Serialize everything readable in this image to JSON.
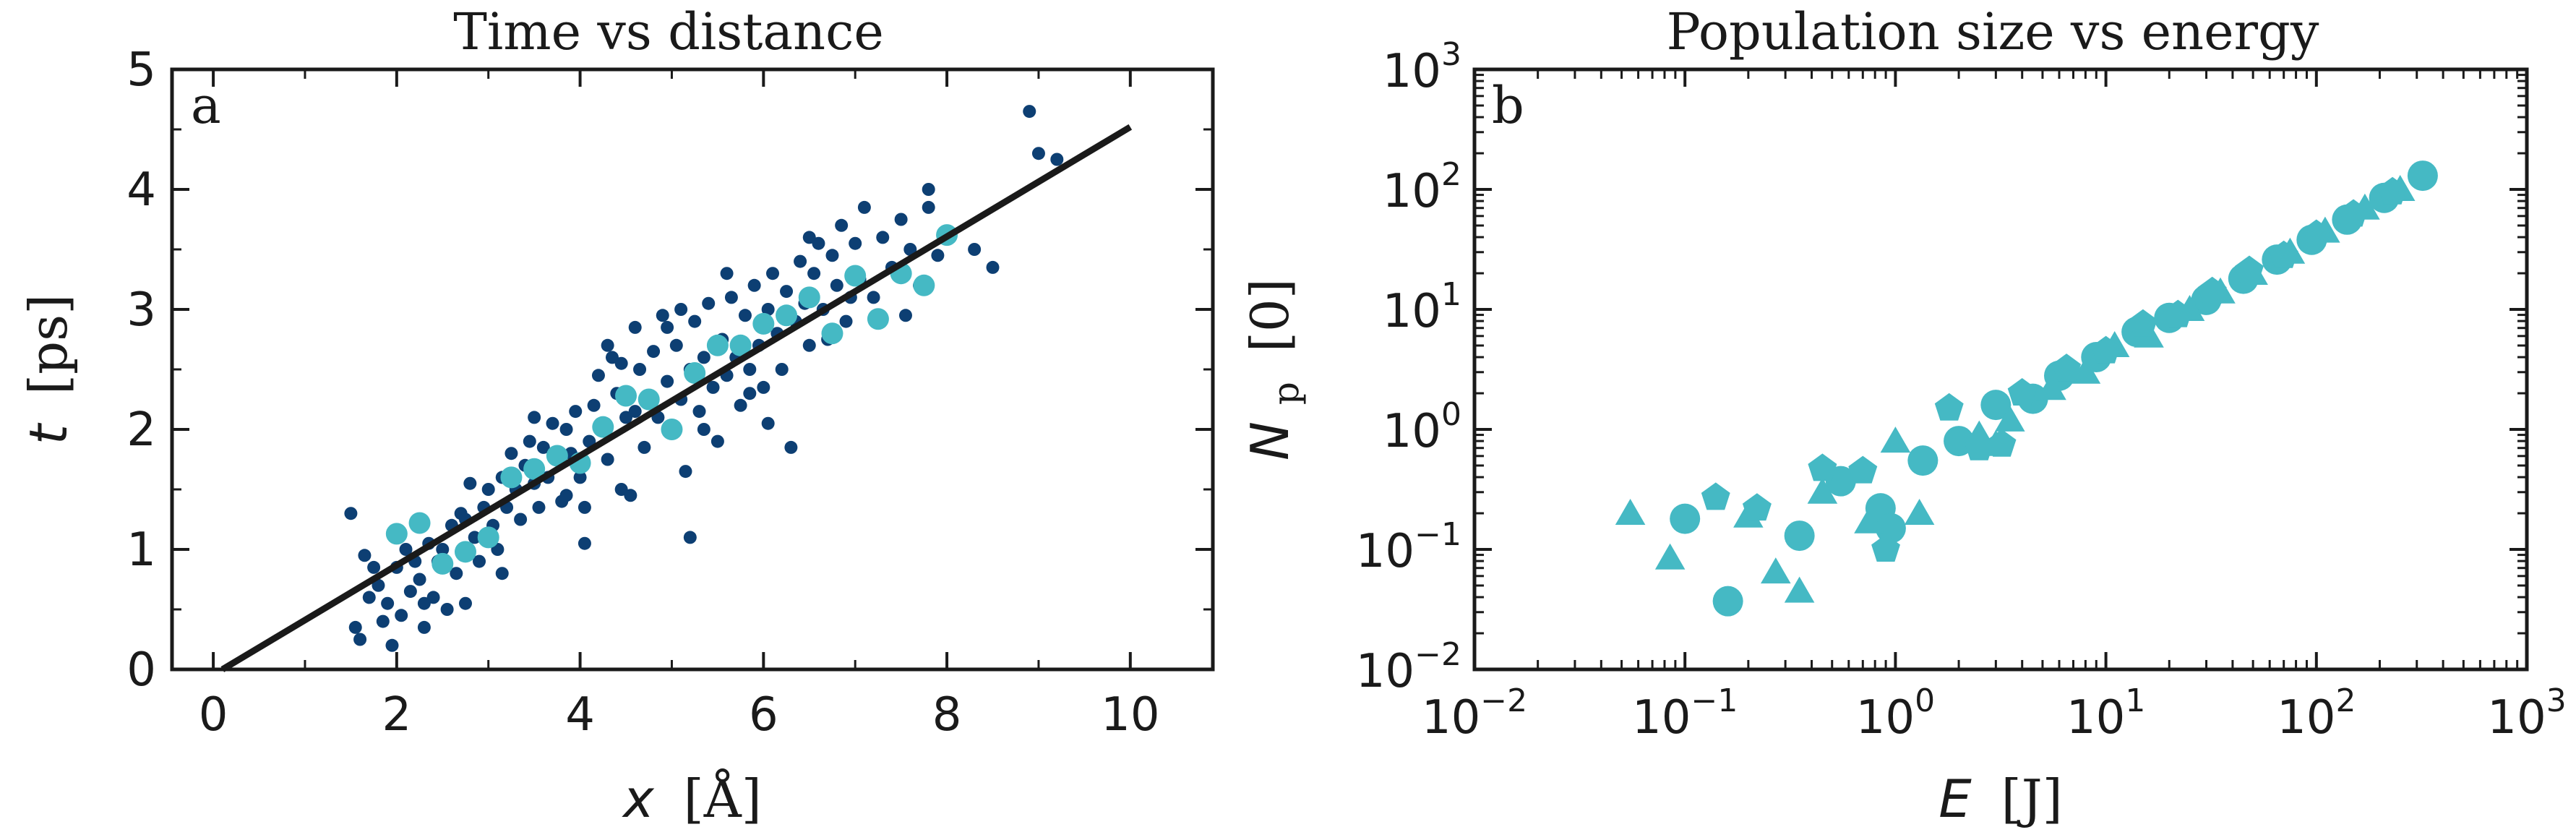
{
  "chart_data": [
    {
      "type": "scatter",
      "panel_label": "a",
      "title": "Time vs distance",
      "xlabel_symbol": "x",
      "xlabel_unit": "[Å]",
      "ylabel_symbol": "t",
      "ylabel_unit": "[ps]",
      "xlim": [
        -0.45,
        10.9
      ],
      "ylim": [
        0,
        5
      ],
      "xticks": [
        0,
        2,
        4,
        6,
        8,
        10
      ],
      "yticks": [
        0,
        1,
        2,
        3,
        4,
        5
      ],
      "grid": false,
      "colors": {
        "small": "#0d3f73",
        "large": "#45b9c4",
        "fit": "#1a1a1a"
      },
      "fit_line": {
        "x": [
          0.1,
          10.0
        ],
        "y": [
          0.0,
          4.52
        ]
      },
      "small_points": [
        [
          1.5,
          1.3
        ],
        [
          1.55,
          0.35
        ],
        [
          1.6,
          0.25
        ],
        [
          1.65,
          0.95
        ],
        [
          1.7,
          0.6
        ],
        [
          1.75,
          0.85
        ],
        [
          1.8,
          0.7
        ],
        [
          1.85,
          0.4
        ],
        [
          1.9,
          0.55
        ],
        [
          1.95,
          0.2
        ],
        [
          2.0,
          0.85
        ],
        [
          2.05,
          0.45
        ],
        [
          2.1,
          1.0
        ],
        [
          2.15,
          0.65
        ],
        [
          2.2,
          0.9
        ],
        [
          2.25,
          0.75
        ],
        [
          2.3,
          0.35
        ],
        [
          2.35,
          1.05
        ],
        [
          2.4,
          0.6
        ],
        [
          2.45,
          0.9
        ],
        [
          2.5,
          1.0
        ],
        [
          2.55,
          0.5
        ],
        [
          2.6,
          1.2
        ],
        [
          2.65,
          0.8
        ],
        [
          2.7,
          1.3
        ],
        [
          2.75,
          0.55
        ],
        [
          2.8,
          1.55
        ],
        [
          2.85,
          1.1
        ],
        [
          2.9,
          0.9
        ],
        [
          2.95,
          1.35
        ],
        [
          3.0,
          1.5
        ],
        [
          3.05,
          1.2
        ],
        [
          3.1,
          1.0
        ],
        [
          3.15,
          1.6
        ],
        [
          3.2,
          1.35
        ],
        [
          3.25,
          1.8
        ],
        [
          3.3,
          1.5
        ],
        [
          3.35,
          1.25
        ],
        [
          3.4,
          1.7
        ],
        [
          3.45,
          1.9
        ],
        [
          3.5,
          1.55
        ],
        [
          3.55,
          1.35
        ],
        [
          3.6,
          1.85
        ],
        [
          3.65,
          1.6
        ],
        [
          3.7,
          2.05
        ],
        [
          3.75,
          1.75
        ],
        [
          3.8,
          1.4
        ],
        [
          3.85,
          2.0
        ],
        [
          3.9,
          1.8
        ],
        [
          3.95,
          2.15
        ],
        [
          4.0,
          1.6
        ],
        [
          4.05,
          1.05
        ],
        [
          4.1,
          1.9
        ],
        [
          4.15,
          2.2
        ],
        [
          4.2,
          2.45
        ],
        [
          4.25,
          2.0
        ],
        [
          4.3,
          1.75
        ],
        [
          4.35,
          2.6
        ],
        [
          4.4,
          2.3
        ],
        [
          4.45,
          1.5
        ],
        [
          4.5,
          2.1
        ],
        [
          4.55,
          1.45
        ],
        [
          4.6,
          2.85
        ],
        [
          4.65,
          2.5
        ],
        [
          4.7,
          1.85
        ],
        [
          4.75,
          2.25
        ],
        [
          4.8,
          2.65
        ],
        [
          4.85,
          2.1
        ],
        [
          4.9,
          2.95
        ],
        [
          4.95,
          2.4
        ],
        [
          5.0,
          2.0
        ],
        [
          5.05,
          2.7
        ],
        [
          5.1,
          2.25
        ],
        [
          5.15,
          1.65
        ],
        [
          5.2,
          2.5
        ],
        [
          5.25,
          2.9
        ],
        [
          5.3,
          2.15
        ],
        [
          5.35,
          2.6
        ],
        [
          5.4,
          3.05
        ],
        [
          5.45,
          2.35
        ],
        [
          5.5,
          1.9
        ],
        [
          5.55,
          2.75
        ],
        [
          5.6,
          2.45
        ],
        [
          5.65,
          3.1
        ],
        [
          5.7,
          2.6
        ],
        [
          5.75,
          2.2
        ],
        [
          5.8,
          2.95
        ],
        [
          5.85,
          2.5
        ],
        [
          5.9,
          3.2
        ],
        [
          5.95,
          2.7
        ],
        [
          6.0,
          2.35
        ],
        [
          6.05,
          3.0
        ],
        [
          6.1,
          3.3
        ],
        [
          6.15,
          2.8
        ],
        [
          6.2,
          2.5
        ],
        [
          6.25,
          3.15
        ],
        [
          6.3,
          1.85
        ],
        [
          6.35,
          2.9
        ],
        [
          6.4,
          3.4
        ],
        [
          6.45,
          3.05
        ],
        [
          6.5,
          2.7
        ],
        [
          6.55,
          3.3
        ],
        [
          6.6,
          3.55
        ],
        [
          6.65,
          3.0
        ],
        [
          6.7,
          2.75
        ],
        [
          6.75,
          3.45
        ],
        [
          6.8,
          3.2
        ],
        [
          6.85,
          3.7
        ],
        [
          6.9,
          2.9
        ],
        [
          7.0,
          3.55
        ],
        [
          7.05,
          3.25
        ],
        [
          7.1,
          3.85
        ],
        [
          7.2,
          3.1
        ],
        [
          7.3,
          3.6
        ],
        [
          7.4,
          3.35
        ],
        [
          7.5,
          3.75
        ],
        [
          7.55,
          2.95
        ],
        [
          7.6,
          3.5
        ],
        [
          7.7,
          3.2
        ],
        [
          7.8,
          3.85
        ],
        [
          7.9,
          3.45
        ],
        [
          8.0,
          3.65
        ],
        [
          8.3,
          3.5
        ],
        [
          8.5,
          3.35
        ],
        [
          8.9,
          4.65
        ],
        [
          9.0,
          4.3
        ],
        [
          9.2,
          4.25
        ],
        [
          5.2,
          1.1
        ],
        [
          4.05,
          1.35
        ],
        [
          3.15,
          0.8
        ],
        [
          2.75,
          1.25
        ],
        [
          6.05,
          2.05
        ],
        [
          5.6,
          3.3
        ],
        [
          4.6,
          2.15
        ],
        [
          3.85,
          1.45
        ],
        [
          4.95,
          2.85
        ],
        [
          5.35,
          2.0
        ],
        [
          7.8,
          4.0
        ],
        [
          6.5,
          3.6
        ],
        [
          2.3,
          0.55
        ],
        [
          4.45,
          2.55
        ],
        [
          5.85,
          2.3
        ],
        [
          6.95,
          3.1
        ],
        [
          3.5,
          2.1
        ],
        [
          4.3,
          2.7
        ],
        [
          5.1,
          3.0
        ]
      ],
      "large_points": [
        [
          2.0,
          1.13
        ],
        [
          2.25,
          1.22
        ],
        [
          2.5,
          0.88
        ],
        [
          2.75,
          0.98
        ],
        [
          3.0,
          1.1
        ],
        [
          3.25,
          1.6
        ],
        [
          3.5,
          1.67
        ],
        [
          3.75,
          1.78
        ],
        [
          4.0,
          1.72
        ],
        [
          4.25,
          2.02
        ],
        [
          4.5,
          2.28
        ],
        [
          4.75,
          2.25
        ],
        [
          5.0,
          2.0
        ],
        [
          5.25,
          2.47
        ],
        [
          5.5,
          2.7
        ],
        [
          5.75,
          2.7
        ],
        [
          6.0,
          2.88
        ],
        [
          6.25,
          2.95
        ],
        [
          6.5,
          3.1
        ],
        [
          6.75,
          2.8
        ],
        [
          7.0,
          3.28
        ],
        [
          7.25,
          2.92
        ],
        [
          7.5,
          3.3
        ],
        [
          7.75,
          3.2
        ],
        [
          8.0,
          3.62
        ]
      ]
    },
    {
      "type": "scatter",
      "panel_label": "b",
      "title": "Population size vs energy",
      "xlabel_symbol": "E",
      "xlabel_unit": "[J]",
      "ylabel_symbol": "N",
      "ylabel_subscript": "p",
      "ylabel_unit": "[0]",
      "xscale": "log",
      "yscale": "log",
      "xlim": [
        0.01,
        1000
      ],
      "ylim": [
        0.01,
        1000
      ],
      "xtick_bases": [
        "10",
        "10",
        "10",
        "10",
        "10",
        "10"
      ],
      "xtick_exponents": [
        "−2",
        "−1",
        "0",
        "1",
        "2",
        "3"
      ],
      "ytick_bases": [
        "10",
        "10",
        "10",
        "10",
        "10",
        "10"
      ],
      "ytick_exponents": [
        "−2",
        "−1",
        "0",
        "1",
        "2",
        "3"
      ],
      "grid": false,
      "colors": {
        "markers": "#45b9c4"
      },
      "series": [
        {
          "marker": "circle",
          "points": [
            [
              0.1,
              0.18
            ],
            [
              0.16,
              0.037
            ],
            [
              0.35,
              0.13
            ],
            [
              0.55,
              0.37
            ],
            [
              0.85,
              0.22
            ],
            [
              0.95,
              0.15
            ],
            [
              1.35,
              0.55
            ],
            [
              2.0,
              0.8
            ],
            [
              3.0,
              1.6
            ],
            [
              4.5,
              1.8
            ],
            [
              6.0,
              2.8
            ],
            [
              9.0,
              4.0
            ],
            [
              14.0,
              6.5
            ],
            [
              20.0,
              8.5
            ],
            [
              30.0,
              12.0
            ],
            [
              45.0,
              18.0
            ],
            [
              65.0,
              26.0
            ],
            [
              95.0,
              38.0
            ],
            [
              140.0,
              56.0
            ],
            [
              210.0,
              85.0
            ],
            [
              320.0,
              130.0
            ]
          ]
        },
        {
          "marker": "triangle",
          "points": [
            [
              0.055,
              0.2
            ],
            [
              0.085,
              0.085
            ],
            [
              0.2,
              0.19
            ],
            [
              0.27,
              0.065
            ],
            [
              0.35,
              0.045
            ],
            [
              0.45,
              0.3
            ],
            [
              0.75,
              0.17
            ],
            [
              1.0,
              0.8
            ],
            [
              1.3,
              0.2
            ],
            [
              2.5,
              0.9
            ],
            [
              3.0,
              0.75
            ],
            [
              3.5,
              1.2
            ],
            [
              5.5,
              2.2
            ],
            [
              8.0,
              3.0
            ],
            [
              11.0,
              5.0
            ],
            [
              16.0,
              6.0
            ],
            [
              25.0,
              10.0
            ],
            [
              35.0,
              14.0
            ],
            [
              50.0,
              20.0
            ],
            [
              75.0,
              30.0
            ],
            [
              110.0,
              45.0
            ],
            [
              170.0,
              70.0
            ],
            [
              250.0,
              100.0
            ]
          ]
        },
        {
          "marker": "pentagon",
          "points": [
            [
              0.14,
              0.27
            ],
            [
              0.22,
              0.22
            ],
            [
              0.45,
              0.47
            ],
            [
              0.7,
              0.45
            ],
            [
              0.9,
              0.1
            ],
            [
              1.8,
              1.5
            ],
            [
              2.5,
              0.7
            ],
            [
              3.2,
              0.75
            ],
            [
              4.0,
              2.0
            ],
            [
              6.5,
              3.2
            ],
            [
              10.0,
              4.5
            ],
            [
              15.0,
              7.5
            ],
            [
              22.0,
              9.0
            ],
            [
              32.0,
              14.0
            ],
            [
              48.0,
              21.0
            ],
            [
              70.0,
              28.0
            ],
            [
              100.0,
              42.0
            ],
            [
              150.0,
              62.0
            ],
            [
              230.0,
              95.0
            ]
          ]
        }
      ]
    }
  ]
}
